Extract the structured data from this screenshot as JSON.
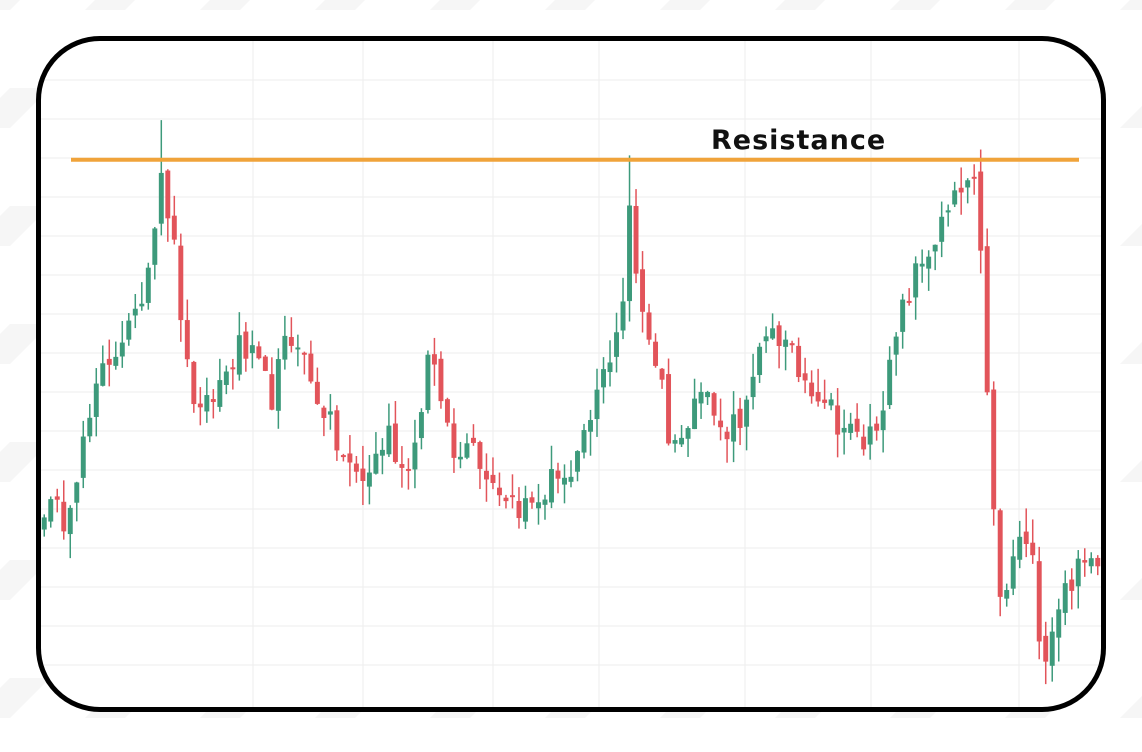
{
  "chart_data": {
    "type": "candlestick",
    "title": "",
    "xlabel": "",
    "ylabel": "",
    "ylim": [
      0,
      100
    ],
    "grid": true,
    "annotations": [
      {
        "type": "horizontal-line",
        "label": "Resistance",
        "y": 87,
        "color": "#f0a33a"
      }
    ],
    "colors": {
      "up": "#3d9a7b",
      "down": "#e2545a",
      "resistance": "#f0a33a",
      "frame": "#000000",
      "grid": "#eeeeee"
    },
    "waypoints": [
      [
        0,
        30
      ],
      [
        3,
        28
      ],
      [
        6,
        40
      ],
      [
        9,
        52
      ],
      [
        12,
        58
      ],
      [
        14,
        60
      ],
      [
        16,
        70
      ],
      [
        18,
        86
      ],
      [
        20,
        72
      ],
      [
        22,
        52
      ],
      [
        24,
        44
      ],
      [
        26,
        48
      ],
      [
        28,
        52
      ],
      [
        30,
        56
      ],
      [
        32,
        54
      ],
      [
        35,
        48
      ],
      [
        37,
        56
      ],
      [
        39,
        58
      ],
      [
        41,
        50
      ],
      [
        43,
        46
      ],
      [
        45,
        40
      ],
      [
        47,
        36
      ],
      [
        49,
        34
      ],
      [
        51,
        38
      ],
      [
        53,
        42
      ],
      [
        55,
        36
      ],
      [
        57,
        40
      ],
      [
        59,
        54
      ],
      [
        61,
        48
      ],
      [
        63,
        38
      ],
      [
        65,
        42
      ],
      [
        67,
        38
      ],
      [
        69,
        34
      ],
      [
        71,
        32
      ],
      [
        73,
        30
      ],
      [
        75,
        30
      ],
      [
        77,
        32
      ],
      [
        79,
        36
      ],
      [
        81,
        34
      ],
      [
        83,
        40
      ],
      [
        85,
        48
      ],
      [
        87,
        55
      ],
      [
        89,
        64
      ],
      [
        90,
        78
      ],
      [
        91,
        68
      ],
      [
        93,
        58
      ],
      [
        95,
        50
      ],
      [
        96,
        42
      ],
      [
        98,
        40
      ],
      [
        100,
        50
      ],
      [
        102,
        48
      ],
      [
        104,
        42
      ],
      [
        106,
        44
      ],
      [
        108,
        46
      ],
      [
        110,
        54
      ],
      [
        112,
        60
      ],
      [
        114,
        56
      ],
      [
        116,
        52
      ],
      [
        118,
        50
      ],
      [
        120,
        48
      ],
      [
        122,
        44
      ],
      [
        124,
        42
      ],
      [
        126,
        40
      ],
      [
        128,
        44
      ],
      [
        130,
        52
      ],
      [
        132,
        62
      ],
      [
        134,
        68
      ],
      [
        136,
        72
      ],
      [
        138,
        76
      ],
      [
        140,
        80
      ],
      [
        142,
        83
      ],
      [
        143,
        82
      ],
      [
        144,
        70
      ],
      [
        145,
        50
      ],
      [
        146,
        28
      ],
      [
        147,
        14
      ],
      [
        148,
        16
      ],
      [
        150,
        25
      ],
      [
        152,
        20
      ],
      [
        153,
        10
      ],
      [
        154,
        6
      ],
      [
        156,
        14
      ],
      [
        158,
        18
      ],
      [
        160,
        20
      ],
      [
        162,
        22
      ]
    ]
  }
}
